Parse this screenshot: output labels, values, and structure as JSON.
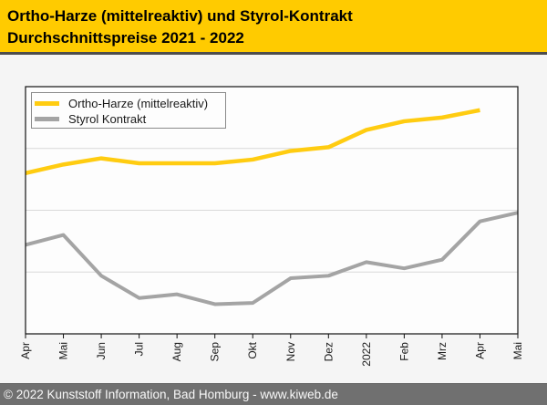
{
  "header": {
    "title_line1": "Ortho-Harze (mittelreaktiv) und Styrol-Kontrakt",
    "title_line2": "Durchschnittspreise 2021 - 2022"
  },
  "legend": {
    "items": [
      {
        "label": "Ortho-Harze (mittelreaktiv)",
        "color": "#FFCC11"
      },
      {
        "label": "Styrol Kontrakt",
        "color": "#A4A4A4"
      }
    ]
  },
  "footer": {
    "text": "© 2022 Kunststoff Information, Bad Homburg - www.kiweb.de"
  },
  "colors": {
    "banner": "#FFCB00",
    "banner_separator": "#4D4D4D",
    "page_bg": "#F5F5F5",
    "plot_bg": "#FDFDFD",
    "plot_border": "#111111",
    "grid": "#D9D9D9",
    "tick": "#111111",
    "axis_label": "#1A1A1A",
    "ortho_line": "#FFCC11",
    "styrol_line": "#A4A4A4",
    "footer_bg": "#707070"
  },
  "chart_data": {
    "type": "line",
    "title": "Ortho-Harze (mittelreaktiv) und Styrol-Kontrakt Durchschnittspreise 2021 - 2022",
    "categories": [
      "Apr",
      "Mai",
      "Jun",
      "Jul",
      "Aug",
      "Sep",
      "Okt",
      "Nov",
      "Dez",
      "2022",
      "Feb",
      "Mrz",
      "Apr",
      "Mai"
    ],
    "series": [
      {
        "name": "Ortho-Harze (mittelreaktiv)",
        "color": "#FFCC11",
        "values": [
          65,
          68.5,
          71,
          69,
          69,
          69,
          70.5,
          74,
          75.5,
          82.5,
          86,
          87.5,
          90.5,
          null
        ]
      },
      {
        "name": "Styrol Kontrakt",
        "color": "#A4A4A4",
        "values": [
          36,
          40,
          23.5,
          14.5,
          16,
          12,
          12.5,
          22.5,
          23.5,
          29,
          26.5,
          30,
          45.5,
          49
        ]
      }
    ],
    "xlabel": "",
    "ylabel": "",
    "ylim": [
      0,
      100
    ],
    "y_units": "relative level (no y-axis tick labels shown in chart)",
    "gridlines_y": [
      25,
      50,
      75
    ],
    "grid": true,
    "legend_position": "top-left",
    "x_labels_rotated_degrees": 90
  }
}
